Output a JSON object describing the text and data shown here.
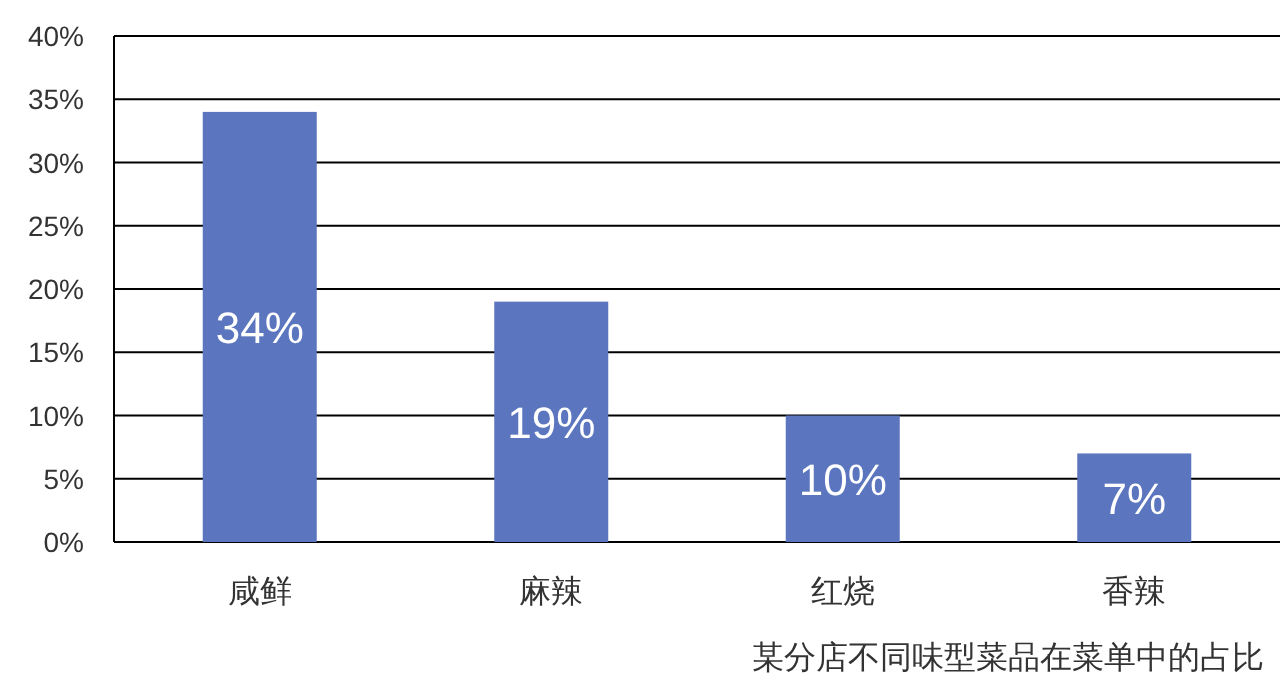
{
  "chart_data": {
    "type": "bar",
    "categories": [
      "咸鲜",
      "麻辣",
      "红烧",
      "香辣"
    ],
    "values": [
      34,
      19,
      10,
      7
    ],
    "color": "#5b76be",
    "ylim": [
      0,
      40
    ],
    "yticks": [
      {
        "value": 0,
        "label": "0%"
      },
      {
        "value": 5,
        "label": "5%"
      },
      {
        "value": 10,
        "label": "10%"
      },
      {
        "value": 15,
        "label": "15%"
      },
      {
        "value": 20,
        "label": "20%"
      },
      {
        "value": 25,
        "label": "25%"
      },
      {
        "value": 30,
        "label": "30%"
      },
      {
        "value": 35,
        "label": "35%"
      },
      {
        "value": 40,
        "label": "40%"
      }
    ],
    "grid": "y",
    "value_labels": [
      "34%",
      "19%",
      "10%",
      "7%"
    ],
    "annotations": [
      "某分店不同味型菜品在菜单中的占比"
    ]
  }
}
